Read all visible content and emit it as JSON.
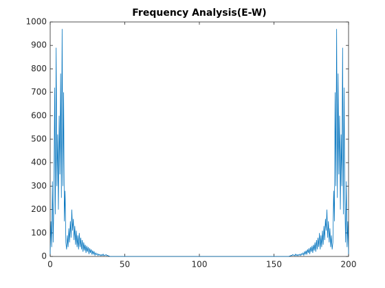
{
  "chart_data": {
    "type": "line",
    "title": "Frequency Analysis(E-W)",
    "x": [
      0,
      0.5,
      1,
      1.5,
      2,
      2.5,
      3,
      3.5,
      4,
      4.5,
      5,
      5.5,
      6,
      6.5,
      7,
      7.5,
      8,
      8.5,
      9,
      9.5,
      10,
      10.5,
      11,
      11.5,
      12,
      12.5,
      13,
      13.5,
      14,
      14.5,
      15,
      15.5,
      16,
      16.5,
      17,
      17.5,
      18,
      18.5,
      19,
      19.5,
      20,
      20.5,
      21,
      21.5,
      22,
      22.5,
      23,
      23.5,
      24,
      24.5,
      25,
      25.5,
      26,
      26.5,
      27,
      27.5,
      28,
      28.5,
      29,
      29.5,
      30,
      30.5,
      31,
      31.5,
      32,
      32.5,
      33,
      33.5,
      34,
      34.5,
      35,
      35.5,
      36,
      36.5,
      37,
      37.5,
      38,
      38.5,
      39,
      39.5,
      40,
      50,
      100,
      150,
      160,
      160.5,
      161,
      161.5,
      162,
      162.5,
      163,
      163.5,
      164,
      164.5,
      165,
      165.5,
      166,
      166.5,
      167,
      167.5,
      168,
      168.5,
      169,
      169.5,
      170,
      170.5,
      171,
      171.5,
      172,
      172.5,
      173,
      173.5,
      174,
      174.5,
      175,
      175.5,
      176,
      176.5,
      177,
      177.5,
      178,
      178.5,
      179,
      179.5,
      180,
      180.5,
      181,
      181.5,
      182,
      182.5,
      183,
      183.5,
      184,
      184.5,
      185,
      185.5,
      186,
      186.5,
      187,
      187.5,
      188,
      188.5,
      189,
      189.5,
      190,
      190.5,
      191,
      191.5,
      192,
      192.5,
      193,
      193.5,
      194,
      194.5,
      195,
      195.5,
      196,
      196.5,
      197,
      197.5,
      198,
      198.5,
      199,
      199.5,
      200
    ],
    "series": [
      {
        "color": "#0072bd",
        "values": [
          10,
          150,
          40,
          320,
          60,
          250,
          720,
          180,
          890,
          300,
          520,
          200,
          600,
          350,
          780,
          250,
          970,
          300,
          700,
          150,
          280,
          60,
          30,
          90,
          40,
          120,
          60,
          150,
          80,
          200,
          110,
          160,
          70,
          130,
          50,
          110,
          40,
          90,
          30,
          100,
          40,
          80,
          30,
          70,
          20,
          60,
          25,
          50,
          15,
          45,
          20,
          40,
          10,
          35,
          15,
          30,
          8,
          25,
          10,
          20,
          5,
          15,
          8,
          12,
          4,
          10,
          5,
          8,
          3,
          8,
          4,
          10,
          3,
          6,
          5,
          8,
          3,
          5,
          2,
          2,
          0,
          0,
          0,
          0,
          0,
          2,
          2,
          5,
          3,
          8,
          5,
          6,
          3,
          10,
          4,
          8,
          3,
          8,
          5,
          10,
          4,
          12,
          8,
          15,
          5,
          20,
          10,
          25,
          8,
          30,
          15,
          35,
          10,
          40,
          20,
          45,
          15,
          50,
          25,
          60,
          20,
          70,
          30,
          80,
          40,
          100,
          30,
          90,
          40,
          110,
          50,
          130,
          70,
          160,
          110,
          200,
          80,
          150,
          60,
          120,
          40,
          90,
          30,
          60,
          280,
          150,
          700,
          300,
          970,
          250,
          780,
          350,
          600,
          200,
          520,
          300,
          890,
          180,
          720,
          250,
          60,
          320,
          40,
          150,
          10
        ]
      }
    ],
    "xlim": [
      0,
      200
    ],
    "xticks": [
      0,
      50,
      100,
      150,
      200
    ],
    "ylim": [
      0,
      1000
    ],
    "yticks": [
      0,
      100,
      200,
      300,
      400,
      500,
      600,
      700,
      800,
      900,
      1000
    ]
  }
}
